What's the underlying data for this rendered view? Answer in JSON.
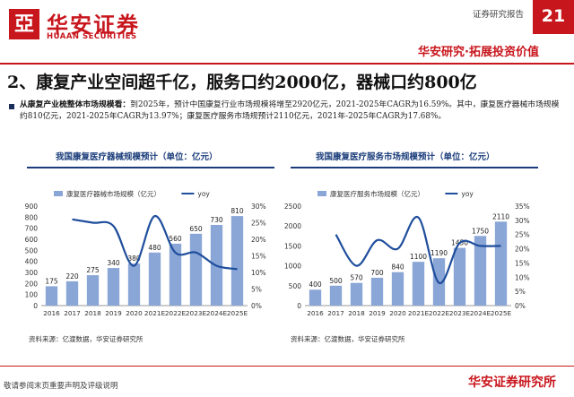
{
  "header": {
    "logo_text": "华安证券",
    "logo_en": "HUAAN SECURITIES",
    "report_type": "证券研究报告",
    "page_number": "21",
    "slogan": "华安研究·拓展投资价值"
  },
  "title": "2、康复产业空间超千亿，服务口约2000亿，器械口约800亿",
  "bullet": {
    "lead": "从康复产业梳整体市场规模看：",
    "body": "到2025年，预计中国康复行业市场规模将增至2920亿元，2021-2025年CAGR为16.59%。其中，康复医疗器械市场规模约810亿元，2021-2025年CAGR为13.97%；康复医疗服务市场规预计2110亿元，2021年-2025年CAGR为17.68%。"
  },
  "colors": {
    "bar": "#8aa6d6",
    "line": "#1f4e9c",
    "brand": "#c8161d",
    "title_blue": "#1a3c7a"
  },
  "chart_data": [
    {
      "type": "bar",
      "title": "我国康复医疗器械规模预计（单位：亿元）",
      "categories": [
        "2016",
        "2017",
        "2018",
        "2019",
        "2020",
        "2021E",
        "2022E",
        "2023E",
        "2024E",
        "2025E"
      ],
      "series": [
        {
          "name": "康复医疗器械市场规模（亿元）",
          "type": "bar",
          "axis": "left",
          "values": [
            175,
            220,
            275,
            340,
            380,
            480,
            560,
            650,
            730,
            810
          ]
        },
        {
          "name": "yoy",
          "type": "line",
          "axis": "right",
          "values": [
            null,
            26,
            25,
            24,
            12,
            27,
            16,
            16,
            12,
            11
          ]
        }
      ],
      "ylim_left": [
        0,
        900
      ],
      "yticks_left": [
        "0",
        "100",
        "200",
        "300",
        "400",
        "500",
        "600",
        "700",
        "800",
        "900"
      ],
      "ylim_right": [
        0,
        30
      ],
      "yticks_right": [
        "0%",
        "5%",
        "10%",
        "15%",
        "20%",
        "25%",
        "30%"
      ],
      "legend_position": "top",
      "source": "资料来源：亿渡数据，华安证券研究所"
    },
    {
      "type": "bar",
      "title": "我国康复医疗服务市场规模预计（单位：亿元）",
      "categories": [
        "2016",
        "2017",
        "2018",
        "2019",
        "2020",
        "2021E",
        "2022E",
        "2023E",
        "2024E",
        "2025E"
      ],
      "series": [
        {
          "name": "康复医疗服务市场规模（亿元）",
          "type": "bar",
          "axis": "left",
          "values": [
            400,
            500,
            570,
            700,
            840,
            1100,
            1190,
            1450,
            1750,
            2110
          ]
        },
        {
          "name": "yoy",
          "type": "line",
          "axis": "right",
          "values": [
            null,
            25,
            14,
            23,
            20,
            31,
            8,
            22,
            21,
            21
          ]
        }
      ],
      "ylim_left": [
        0,
        2500
      ],
      "yticks_left": [
        "0",
        "500",
        "1000",
        "1500",
        "2000",
        "2500"
      ],
      "ylim_right": [
        0,
        35
      ],
      "yticks_right": [
        "0%",
        "5%",
        "10%",
        "15%",
        "20%",
        "25%",
        "30%",
        "35%"
      ],
      "legend_position": "top",
      "source": "资料来源：亿渡数据，华安证券研究所"
    }
  ],
  "footer": {
    "note": "敬请参阅末页重要声明及评级说明",
    "brand": "华安证券研究所"
  }
}
